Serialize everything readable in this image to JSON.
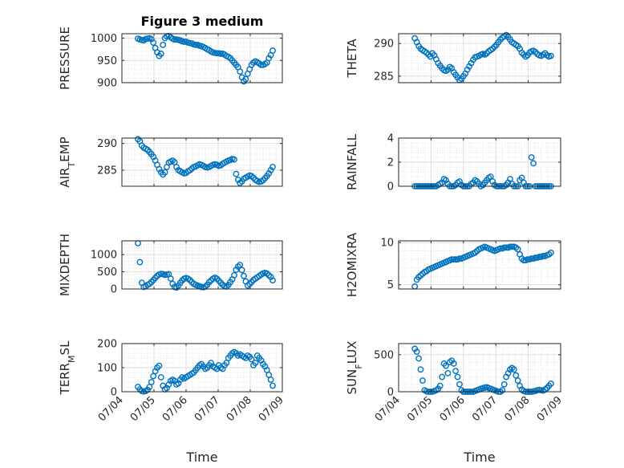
{
  "chart_data": [
    {
      "type": "scatter",
      "title": "Figure 3 medium",
      "ylabel": "PRESSURE",
      "xlabel": "",
      "xlim": [
        0,
        5
      ],
      "ylim": [
        900,
        1010
      ],
      "yticks": [
        900,
        950,
        1000
      ],
      "xticklabels": [
        "07/04",
        "07/05",
        "07/06",
        "07/07",
        "07/08",
        "07/09"
      ],
      "show_xticks": false,
      "grid": true,
      "x": [
        0.5,
        0.56,
        0.62,
        0.68,
        0.74,
        0.8,
        0.86,
        0.92,
        0.98,
        1.04,
        1.1,
        1.16,
        1.22,
        1.28,
        1.34,
        1.4,
        1.46,
        1.52,
        1.58,
        1.64,
        1.7,
        1.76,
        1.82,
        1.88,
        1.94,
        2.0,
        2.06,
        2.12,
        2.18,
        2.24,
        2.3,
        2.36,
        2.42,
        2.48,
        2.54,
        2.6,
        2.66,
        2.72,
        2.78,
        2.84,
        2.9,
        2.96,
        3.02,
        3.08,
        3.14,
        3.2,
        3.26,
        3.32,
        3.38,
        3.44,
        3.5,
        3.56,
        3.62,
        3.68,
        3.74,
        3.8,
        3.86,
        3.92,
        3.98,
        4.04,
        4.1,
        4.16,
        4.22,
        4.28,
        4.34,
        4.4,
        4.46,
        4.52,
        4.58,
        4.64,
        4.7
      ],
      "y": [
        999,
        997,
        996,
        995,
        998,
        999,
        1000,
        998,
        990,
        978,
        968,
        960,
        965,
        985,
        1000,
        1004,
        1005,
        1002,
        999,
        997,
        997,
        996,
        995,
        993,
        992,
        992,
        990,
        989,
        988,
        986,
        985,
        985,
        983,
        982,
        980,
        978,
        975,
        973,
        970,
        968,
        967,
        966,
        966,
        965,
        965,
        963,
        960,
        958,
        955,
        950,
        945,
        940,
        935,
        925,
        912,
        903,
        908,
        920,
        930,
        940,
        945,
        948,
        946,
        943,
        940,
        940,
        942,
        945,
        955,
        962,
        972
      ]
    },
    {
      "type": "scatter",
      "title": "",
      "ylabel": "THETA",
      "xlabel": "",
      "xlim": [
        0,
        5
      ],
      "ylim": [
        284,
        291.5
      ],
      "yticks": [
        285,
        290
      ],
      "xticklabels": [
        "07/04",
        "07/05",
        "07/06",
        "07/07",
        "07/08",
        "07/09"
      ],
      "show_xticks": false,
      "grid": true,
      "x": [
        0.5,
        0.56,
        0.62,
        0.68,
        0.74,
        0.8,
        0.86,
        0.92,
        0.98,
        1.04,
        1.1,
        1.16,
        1.22,
        1.28,
        1.34,
        1.4,
        1.46,
        1.52,
        1.58,
        1.64,
        1.7,
        1.76,
        1.82,
        1.88,
        1.94,
        2.0,
        2.06,
        2.12,
        2.18,
        2.24,
        2.3,
        2.36,
        2.42,
        2.48,
        2.54,
        2.6,
        2.66,
        2.72,
        2.78,
        2.84,
        2.9,
        2.96,
        3.02,
        3.08,
        3.14,
        3.2,
        3.26,
        3.32,
        3.38,
        3.44,
        3.5,
        3.56,
        3.62,
        3.68,
        3.74,
        3.8,
        3.86,
        3.92,
        3.98,
        4.04,
        4.1,
        4.16,
        4.22,
        4.28,
        4.34,
        4.4,
        4.46,
        4.52,
        4.58,
        4.64,
        4.7
      ],
      "y": [
        290.8,
        290.2,
        289.6,
        289.2,
        289.0,
        288.8,
        288.6,
        288.3,
        288.0,
        288.5,
        288.2,
        287.6,
        287.0,
        286.6,
        286.2,
        285.9,
        285.8,
        286.0,
        286.4,
        286.2,
        285.6,
        285.2,
        284.8,
        284.4,
        284.6,
        285.0,
        285.4,
        286.0,
        286.5,
        287.0,
        287.5,
        287.9,
        288.0,
        288.1,
        288.3,
        288.4,
        288.3,
        288.5,
        288.8,
        289.0,
        289.2,
        289.5,
        289.8,
        290.2,
        290.6,
        290.9,
        291.1,
        291.3,
        291.0,
        290.6,
        290.2,
        290.0,
        289.8,
        289.6,
        289.2,
        288.6,
        288.3,
        288.0,
        288.2,
        288.6,
        288.8,
        288.9,
        288.7,
        288.4,
        288.2,
        288.1,
        288.3,
        288.5,
        288.2,
        288.0,
        288.1
      ]
    },
    {
      "type": "scatter",
      "title": "",
      "ylabel": "AIR_TEMP",
      "xlabel": "",
      "xlim": [
        0,
        5
      ],
      "ylim": [
        282,
        291
      ],
      "yticks": [
        285,
        290
      ],
      "xticklabels": [
        "07/04",
        "07/05",
        "07/06",
        "07/07",
        "07/08",
        "07/09"
      ],
      "show_xticks": false,
      "grid": true,
      "x": [
        0.5,
        0.56,
        0.62,
        0.68,
        0.74,
        0.8,
        0.86,
        0.92,
        0.98,
        1.04,
        1.1,
        1.16,
        1.22,
        1.28,
        1.34,
        1.4,
        1.46,
        1.52,
        1.58,
        1.64,
        1.7,
        1.76,
        1.82,
        1.88,
        1.94,
        2.0,
        2.06,
        2.12,
        2.18,
        2.24,
        2.3,
        2.36,
        2.42,
        2.48,
        2.54,
        2.6,
        2.66,
        2.72,
        2.78,
        2.84,
        2.9,
        2.96,
        3.02,
        3.08,
        3.14,
        3.2,
        3.26,
        3.32,
        3.38,
        3.44,
        3.5,
        3.56,
        3.62,
        3.68,
        3.74,
        3.8,
        3.86,
        3.92,
        3.98,
        4.04,
        4.1,
        4.16,
        4.22,
        4.28,
        4.34,
        4.4,
        4.46,
        4.52,
        4.58,
        4.64,
        4.7
      ],
      "y": [
        290.8,
        290.4,
        289.6,
        289.2,
        289.0,
        288.8,
        288.4,
        288.0,
        287.5,
        286.8,
        286.0,
        285.2,
        284.6,
        284.2,
        284.6,
        285.6,
        286.4,
        286.6,
        286.8,
        286.5,
        285.6,
        285.0,
        284.8,
        284.6,
        284.4,
        284.5,
        284.8,
        285.0,
        285.3,
        285.6,
        285.7,
        285.9,
        286.1,
        286.0,
        285.8,
        285.6,
        285.5,
        285.6,
        285.8,
        286.0,
        286.1,
        286.0,
        285.8,
        285.9,
        286.2,
        286.4,
        286.6,
        286.8,
        286.9,
        287.1,
        287.0,
        284.3,
        283.2,
        282.6,
        282.9,
        283.4,
        283.6,
        283.8,
        284.0,
        283.9,
        283.6,
        283.2,
        283.0,
        282.8,
        282.9,
        283.1,
        283.5,
        283.9,
        284.4,
        285.0,
        285.6
      ]
    },
    {
      "type": "scatter",
      "title": "",
      "ylabel": "RAINFALL",
      "xlabel": "",
      "xlim": [
        0,
        5
      ],
      "ylim": [
        0,
        4
      ],
      "yticks": [
        0,
        2,
        4
      ],
      "xticklabels": [
        "07/04",
        "07/05",
        "07/06",
        "07/07",
        "07/08",
        "07/09"
      ],
      "show_xticks": false,
      "grid": true,
      "x": [
        0.5,
        0.56,
        0.62,
        0.68,
        0.74,
        0.8,
        0.86,
        0.92,
        0.98,
        1.04,
        1.1,
        1.16,
        1.22,
        1.28,
        1.34,
        1.4,
        1.46,
        1.52,
        1.58,
        1.64,
        1.7,
        1.76,
        1.82,
        1.88,
        1.94,
        2.0,
        2.06,
        2.12,
        2.18,
        2.24,
        2.3,
        2.36,
        2.42,
        2.48,
        2.54,
        2.6,
        2.66,
        2.72,
        2.78,
        2.84,
        2.9,
        2.96,
        3.02,
        3.08,
        3.14,
        3.2,
        3.26,
        3.32,
        3.38,
        3.44,
        3.5,
        3.56,
        3.62,
        3.68,
        3.74,
        3.8,
        3.86,
        3.92,
        3.98,
        4.04,
        4.1,
        4.16,
        4.22,
        4.28,
        4.34,
        4.4,
        4.46,
        4.52,
        4.58,
        4.64,
        4.7
      ],
      "y": [
        0,
        0,
        0,
        0,
        0,
        0,
        0,
        0,
        0,
        0,
        0,
        0,
        0.1,
        0.2,
        0.3,
        0.6,
        0.5,
        0.2,
        0,
        0,
        0,
        0.1,
        0.3,
        0.4,
        0.1,
        0,
        0,
        0,
        0,
        0.2,
        0.3,
        0.5,
        0.4,
        0.2,
        0,
        0.1,
        0.3,
        0.5,
        0.7,
        0.8,
        0.4,
        0.1,
        0,
        0,
        0,
        0,
        0,
        0.1,
        0.3,
        0.6,
        0.2,
        0,
        0,
        0,
        0.5,
        0.7,
        0.3,
        0,
        0,
        0,
        2.4,
        1.9,
        0,
        0,
        0,
        0,
        0,
        0,
        0,
        0,
        0
      ]
    },
    {
      "type": "scatter",
      "title": "",
      "ylabel": "MIXDEPTH",
      "xlabel": "",
      "xlim": [
        0,
        5
      ],
      "ylim": [
        0,
        1400
      ],
      "yticks": [
        0,
        500,
        1000
      ],
      "xticklabels": [
        "07/04",
        "07/05",
        "07/06",
        "07/07",
        "07/08",
        "07/09"
      ],
      "show_xticks": false,
      "grid": true,
      "x": [
        0.5,
        0.56,
        0.62,
        0.68,
        0.74,
        0.8,
        0.86,
        0.92,
        0.98,
        1.04,
        1.1,
        1.16,
        1.22,
        1.28,
        1.34,
        1.4,
        1.46,
        1.52,
        1.58,
        1.64,
        1.7,
        1.76,
        1.82,
        1.88,
        1.94,
        2.0,
        2.06,
        2.12,
        2.18,
        2.24,
        2.3,
        2.36,
        2.42,
        2.48,
        2.54,
        2.6,
        2.66,
        2.72,
        2.78,
        2.84,
        2.9,
        2.96,
        3.02,
        3.08,
        3.14,
        3.2,
        3.26,
        3.32,
        3.38,
        3.44,
        3.5,
        3.56,
        3.62,
        3.68,
        3.74,
        3.8,
        3.86,
        3.92,
        3.98,
        4.04,
        4.1,
        4.16,
        4.22,
        4.28,
        4.34,
        4.4,
        4.46,
        4.52,
        4.58,
        4.64,
        4.7
      ],
      "y": [
        1330,
        780,
        180,
        60,
        80,
        120,
        150,
        200,
        260,
        320,
        380,
        420,
        440,
        430,
        410,
        420,
        430,
        300,
        150,
        60,
        40,
        100,
        180,
        250,
        300,
        320,
        300,
        260,
        200,
        150,
        120,
        100,
        80,
        60,
        50,
        70,
        120,
        200,
        250,
        300,
        330,
        300,
        240,
        180,
        120,
        80,
        70,
        120,
        200,
        280,
        400,
        560,
        650,
        700,
        550,
        380,
        220,
        100,
        150,
        200,
        260,
        300,
        340,
        380,
        420,
        450,
        470,
        450,
        400,
        350,
        250
      ]
    },
    {
      "type": "scatter",
      "title": "",
      "ylabel": "H2OMIXRA",
      "xlabel": "",
      "xlim": [
        0,
        5
      ],
      "ylim": [
        4.5,
        10.2
      ],
      "yticks": [
        5,
        10
      ],
      "xticklabels": [
        "07/04",
        "07/05",
        "07/06",
        "07/07",
        "07/08",
        "07/09"
      ],
      "show_xticks": false,
      "grid": true,
      "x": [
        0.5,
        0.56,
        0.62,
        0.68,
        0.74,
        0.8,
        0.86,
        0.92,
        0.98,
        1.04,
        1.1,
        1.16,
        1.22,
        1.28,
        1.34,
        1.4,
        1.46,
        1.52,
        1.58,
        1.64,
        1.7,
        1.76,
        1.82,
        1.88,
        1.94,
        2.0,
        2.06,
        2.12,
        2.18,
        2.24,
        2.3,
        2.36,
        2.42,
        2.48,
        2.54,
        2.6,
        2.66,
        2.72,
        2.78,
        2.84,
        2.9,
        2.96,
        3.02,
        3.08,
        3.14,
        3.2,
        3.26,
        3.32,
        3.38,
        3.44,
        3.5,
        3.56,
        3.62,
        3.68,
        3.74,
        3.8,
        3.86,
        3.92,
        3.98,
        4.04,
        4.1,
        4.16,
        4.22,
        4.28,
        4.34,
        4.4,
        4.46,
        4.52,
        4.58,
        4.64,
        4.7
      ],
      "y": [
        4.8,
        5.6,
        5.9,
        6.1,
        6.3,
        6.5,
        6.6,
        6.8,
        6.9,
        7.0,
        7.1,
        7.2,
        7.3,
        7.4,
        7.5,
        7.6,
        7.7,
        7.8,
        7.9,
        8.0,
        8.0,
        8.0,
        8.0,
        8.1,
        8.1,
        8.2,
        8.3,
        8.4,
        8.5,
        8.6,
        8.7,
        8.8,
        9.0,
        9.2,
        9.3,
        9.4,
        9.5,
        9.4,
        9.3,
        9.2,
        9.1,
        9.0,
        9.1,
        9.2,
        9.3,
        9.3,
        9.4,
        9.4,
        9.4,
        9.5,
        9.5,
        9.5,
        9.4,
        9.2,
        8.6,
        8.1,
        7.9,
        7.9,
        8.0,
        8.0,
        8.1,
        8.1,
        8.2,
        8.2,
        8.3,
        8.3,
        8.4,
        8.4,
        8.5,
        8.6,
        8.8
      ]
    },
    {
      "type": "scatter",
      "title": "",
      "ylabel": "TERR_MSL",
      "xlabel": "Time",
      "xlim": [
        0,
        5
      ],
      "ylim": [
        0,
        200
      ],
      "yticks": [
        0,
        100,
        200
      ],
      "xticklabels": [
        "07/04",
        "07/05",
        "07/06",
        "07/07",
        "07/08",
        "07/09"
      ],
      "show_xticks": true,
      "grid": true,
      "x": [
        0.5,
        0.56,
        0.62,
        0.68,
        0.74,
        0.8,
        0.86,
        0.92,
        0.98,
        1.04,
        1.1,
        1.16,
        1.22,
        1.28,
        1.34,
        1.4,
        1.46,
        1.52,
        1.58,
        1.64,
        1.7,
        1.76,
        1.82,
        1.88,
        1.94,
        2.0,
        2.06,
        2.12,
        2.18,
        2.24,
        2.3,
        2.36,
        2.42,
        2.48,
        2.54,
        2.6,
        2.66,
        2.72,
        2.78,
        2.84,
        2.9,
        2.96,
        3.02,
        3.08,
        3.14,
        3.2,
        3.26,
        3.32,
        3.38,
        3.44,
        3.5,
        3.56,
        3.62,
        3.68,
        3.74,
        3.8,
        3.86,
        3.92,
        3.98,
        4.04,
        4.1,
        4.16,
        4.22,
        4.28,
        4.34,
        4.4,
        4.46,
        4.52,
        4.58,
        4.64,
        4.7
      ],
      "y": [
        20,
        10,
        3,
        1,
        3,
        8,
        20,
        40,
        65,
        85,
        100,
        108,
        60,
        25,
        10,
        15,
        30,
        45,
        50,
        45,
        30,
        35,
        50,
        60,
        55,
        60,
        65,
        70,
        75,
        80,
        90,
        100,
        110,
        115,
        105,
        95,
        100,
        110,
        120,
        105,
        100,
        95,
        110,
        100,
        95,
        110,
        120,
        140,
        150,
        160,
        165,
        160,
        150,
        155,
        150,
        145,
        140,
        150,
        145,
        135,
        110,
        120,
        150,
        140,
        130,
        115,
        105,
        90,
        70,
        50,
        25
      ]
    },
    {
      "type": "scatter",
      "title": "",
      "ylabel": "SUN_FLUX",
      "xlabel": "Time",
      "xlim": [
        0,
        5
      ],
      "ylim": [
        0,
        650
      ],
      "yticks": [
        0,
        500
      ],
      "xticklabels": [
        "07/04",
        "07/05",
        "07/06",
        "07/07",
        "07/08",
        "07/09"
      ],
      "show_xticks": true,
      "grid": true,
      "x": [
        0.5,
        0.56,
        0.62,
        0.68,
        0.74,
        0.8,
        0.86,
        0.92,
        0.98,
        1.04,
        1.1,
        1.16,
        1.22,
        1.28,
        1.34,
        1.4,
        1.46,
        1.52,
        1.58,
        1.64,
        1.7,
        1.76,
        1.82,
        1.88,
        1.94,
        2.0,
        2.06,
        2.12,
        2.18,
        2.24,
        2.3,
        2.36,
        2.42,
        2.48,
        2.54,
        2.6,
        2.66,
        2.72,
        2.78,
        2.84,
        2.9,
        2.96,
        3.02,
        3.08,
        3.14,
        3.2,
        3.26,
        3.32,
        3.38,
        3.44,
        3.5,
        3.56,
        3.62,
        3.68,
        3.74,
        3.8,
        3.86,
        3.92,
        3.98,
        4.04,
        4.1,
        4.16,
        4.22,
        4.28,
        4.34,
        4.4,
        4.46,
        4.52,
        4.58,
        4.64,
        4.7
      ],
      "y": [
        580,
        540,
        450,
        300,
        150,
        20,
        5,
        0,
        0,
        0,
        10,
        20,
        40,
        80,
        200,
        380,
        350,
        250,
        400,
        420,
        380,
        280,
        200,
        100,
        20,
        0,
        0,
        0,
        0,
        0,
        0,
        10,
        20,
        30,
        40,
        50,
        55,
        60,
        50,
        40,
        30,
        20,
        10,
        0,
        0,
        20,
        100,
        200,
        250,
        300,
        320,
        300,
        220,
        150,
        80,
        30,
        10,
        0,
        0,
        0,
        0,
        5,
        10,
        20,
        25,
        20,
        15,
        30,
        50,
        80,
        110
      ]
    }
  ]
}
